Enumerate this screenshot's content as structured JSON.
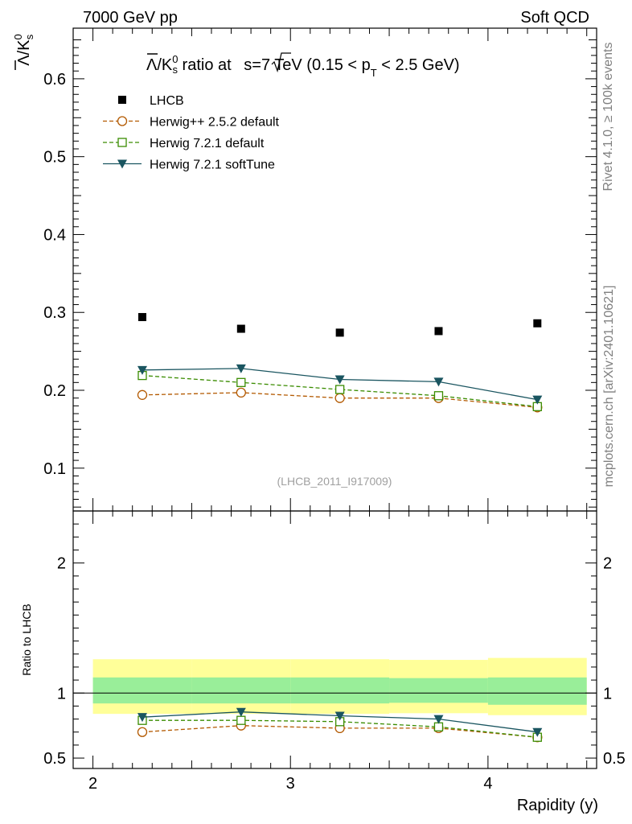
{
  "header": {
    "left": "7000 GeV pp",
    "right": "Soft QCD"
  },
  "side_labels": {
    "rivet": "Rivet 4.1.0, ≥ 100k events",
    "mcplots": "mcplots.cern.ch [arXiv:2401.10621]"
  },
  "chart_data": [
    {
      "type": "line",
      "panel": "main",
      "title": "Λ̄/K⁰s ratio at √s=7 TeV (0.15 < pT < 2.5 GeV)",
      "title_parts": {
        "lambda": "Λ",
        "slash_k": "/K",
        "k_sup": "0",
        "k_sub": "s",
        "mid": " ratio at ",
        "sqrt_s": "s",
        "energy": "=7 TeV (0.15 < p",
        "pt_sub": "T",
        "tail": " < 2.5 GeV)"
      },
      "ylabel_parts": {
        "lambda": "Λ",
        "k": "/K",
        "sup": "0",
        "sub": "s"
      },
      "watermark": "(LHCB_2011_I917009)",
      "xlim": [
        1.9,
        4.55
      ],
      "ylim": [
        0.045,
        0.665
      ],
      "yticks": [
        0.1,
        0.2,
        0.3,
        0.4,
        0.5,
        0.6
      ],
      "ytick_labels": [
        "0.1",
        "0.2",
        "0.3",
        "0.4",
        "0.5",
        "0.6"
      ],
      "x": [
        2.25,
        2.75,
        3.25,
        3.75,
        4.25
      ],
      "series": [
        {
          "name": "LHCB",
          "style": "data",
          "marker": "square",
          "color": "#000000",
          "values": [
            0.294,
            0.279,
            0.274,
            0.276,
            0.286
          ]
        },
        {
          "name": "Herwig++ 2.5.2 default",
          "style": "dashed",
          "marker": "circle",
          "color": "#b35900",
          "values": [
            0.194,
            0.197,
            0.19,
            0.19,
            0.178
          ]
        },
        {
          "name": "Herwig 7.2.1 default",
          "style": "dashed",
          "marker": "open-square",
          "color": "#3a8c00",
          "values": [
            0.219,
            0.21,
            0.201,
            0.193,
            0.179
          ]
        },
        {
          "name": "Herwig 7.2.1 softTune",
          "style": "solid",
          "marker": "triangle-down",
          "color": "#1a5560",
          "values": [
            0.226,
            0.228,
            0.214,
            0.211,
            0.188
          ]
        }
      ]
    },
    {
      "type": "line",
      "panel": "ratio",
      "ylabel": "Ratio to LHCB",
      "xlabel": "Rapidity (y)",
      "xlim": [
        1.9,
        4.55
      ],
      "ylim": [
        0.42,
        2.4
      ],
      "yticks": [
        0.5,
        1,
        2
      ],
      "ytick_labels": [
        "0.5",
        "1",
        "2"
      ],
      "xticks": [
        2,
        3,
        4
      ],
      "xtick_labels": [
        "2",
        "3",
        "4"
      ],
      "x": [
        2.25,
        2.75,
        3.25,
        3.75,
        4.25
      ],
      "bands": [
        {
          "xmin": 2.0,
          "xmax": 2.5,
          "yellow": [
            0.84,
            1.26
          ],
          "green": [
            0.92,
            1.12
          ]
        },
        {
          "xmin": 2.5,
          "xmax": 3.0,
          "yellow": [
            0.84,
            1.26
          ],
          "green": [
            0.92,
            1.12
          ]
        },
        {
          "xmin": 3.0,
          "xmax": 3.5,
          "yellow": [
            0.84,
            1.26
          ],
          "green": [
            0.92,
            1.12
          ]
        },
        {
          "xmin": 3.5,
          "xmax": 4.0,
          "yellow": [
            0.845,
            1.255
          ],
          "green": [
            0.925,
            1.115
          ]
        },
        {
          "xmin": 4.0,
          "xmax": 4.5,
          "yellow": [
            0.83,
            1.27
          ],
          "green": [
            0.91,
            1.12
          ]
        }
      ],
      "series": [
        {
          "name": "Herwig++ 2.5.2 default",
          "style": "dashed",
          "marker": "circle",
          "color": "#b35900",
          "values": [
            0.7,
            0.75,
            0.73,
            0.73,
            0.66
          ]
        },
        {
          "name": "Herwig 7.2.1 default",
          "style": "dashed",
          "marker": "open-square",
          "color": "#3a8c00",
          "values": [
            0.79,
            0.79,
            0.78,
            0.74,
            0.66
          ]
        },
        {
          "name": "Herwig 7.2.1 softTune",
          "style": "solid",
          "marker": "triangle-down",
          "color": "#1a5560",
          "values": [
            0.815,
            0.855,
            0.825,
            0.8,
            0.7
          ]
        }
      ]
    }
  ]
}
